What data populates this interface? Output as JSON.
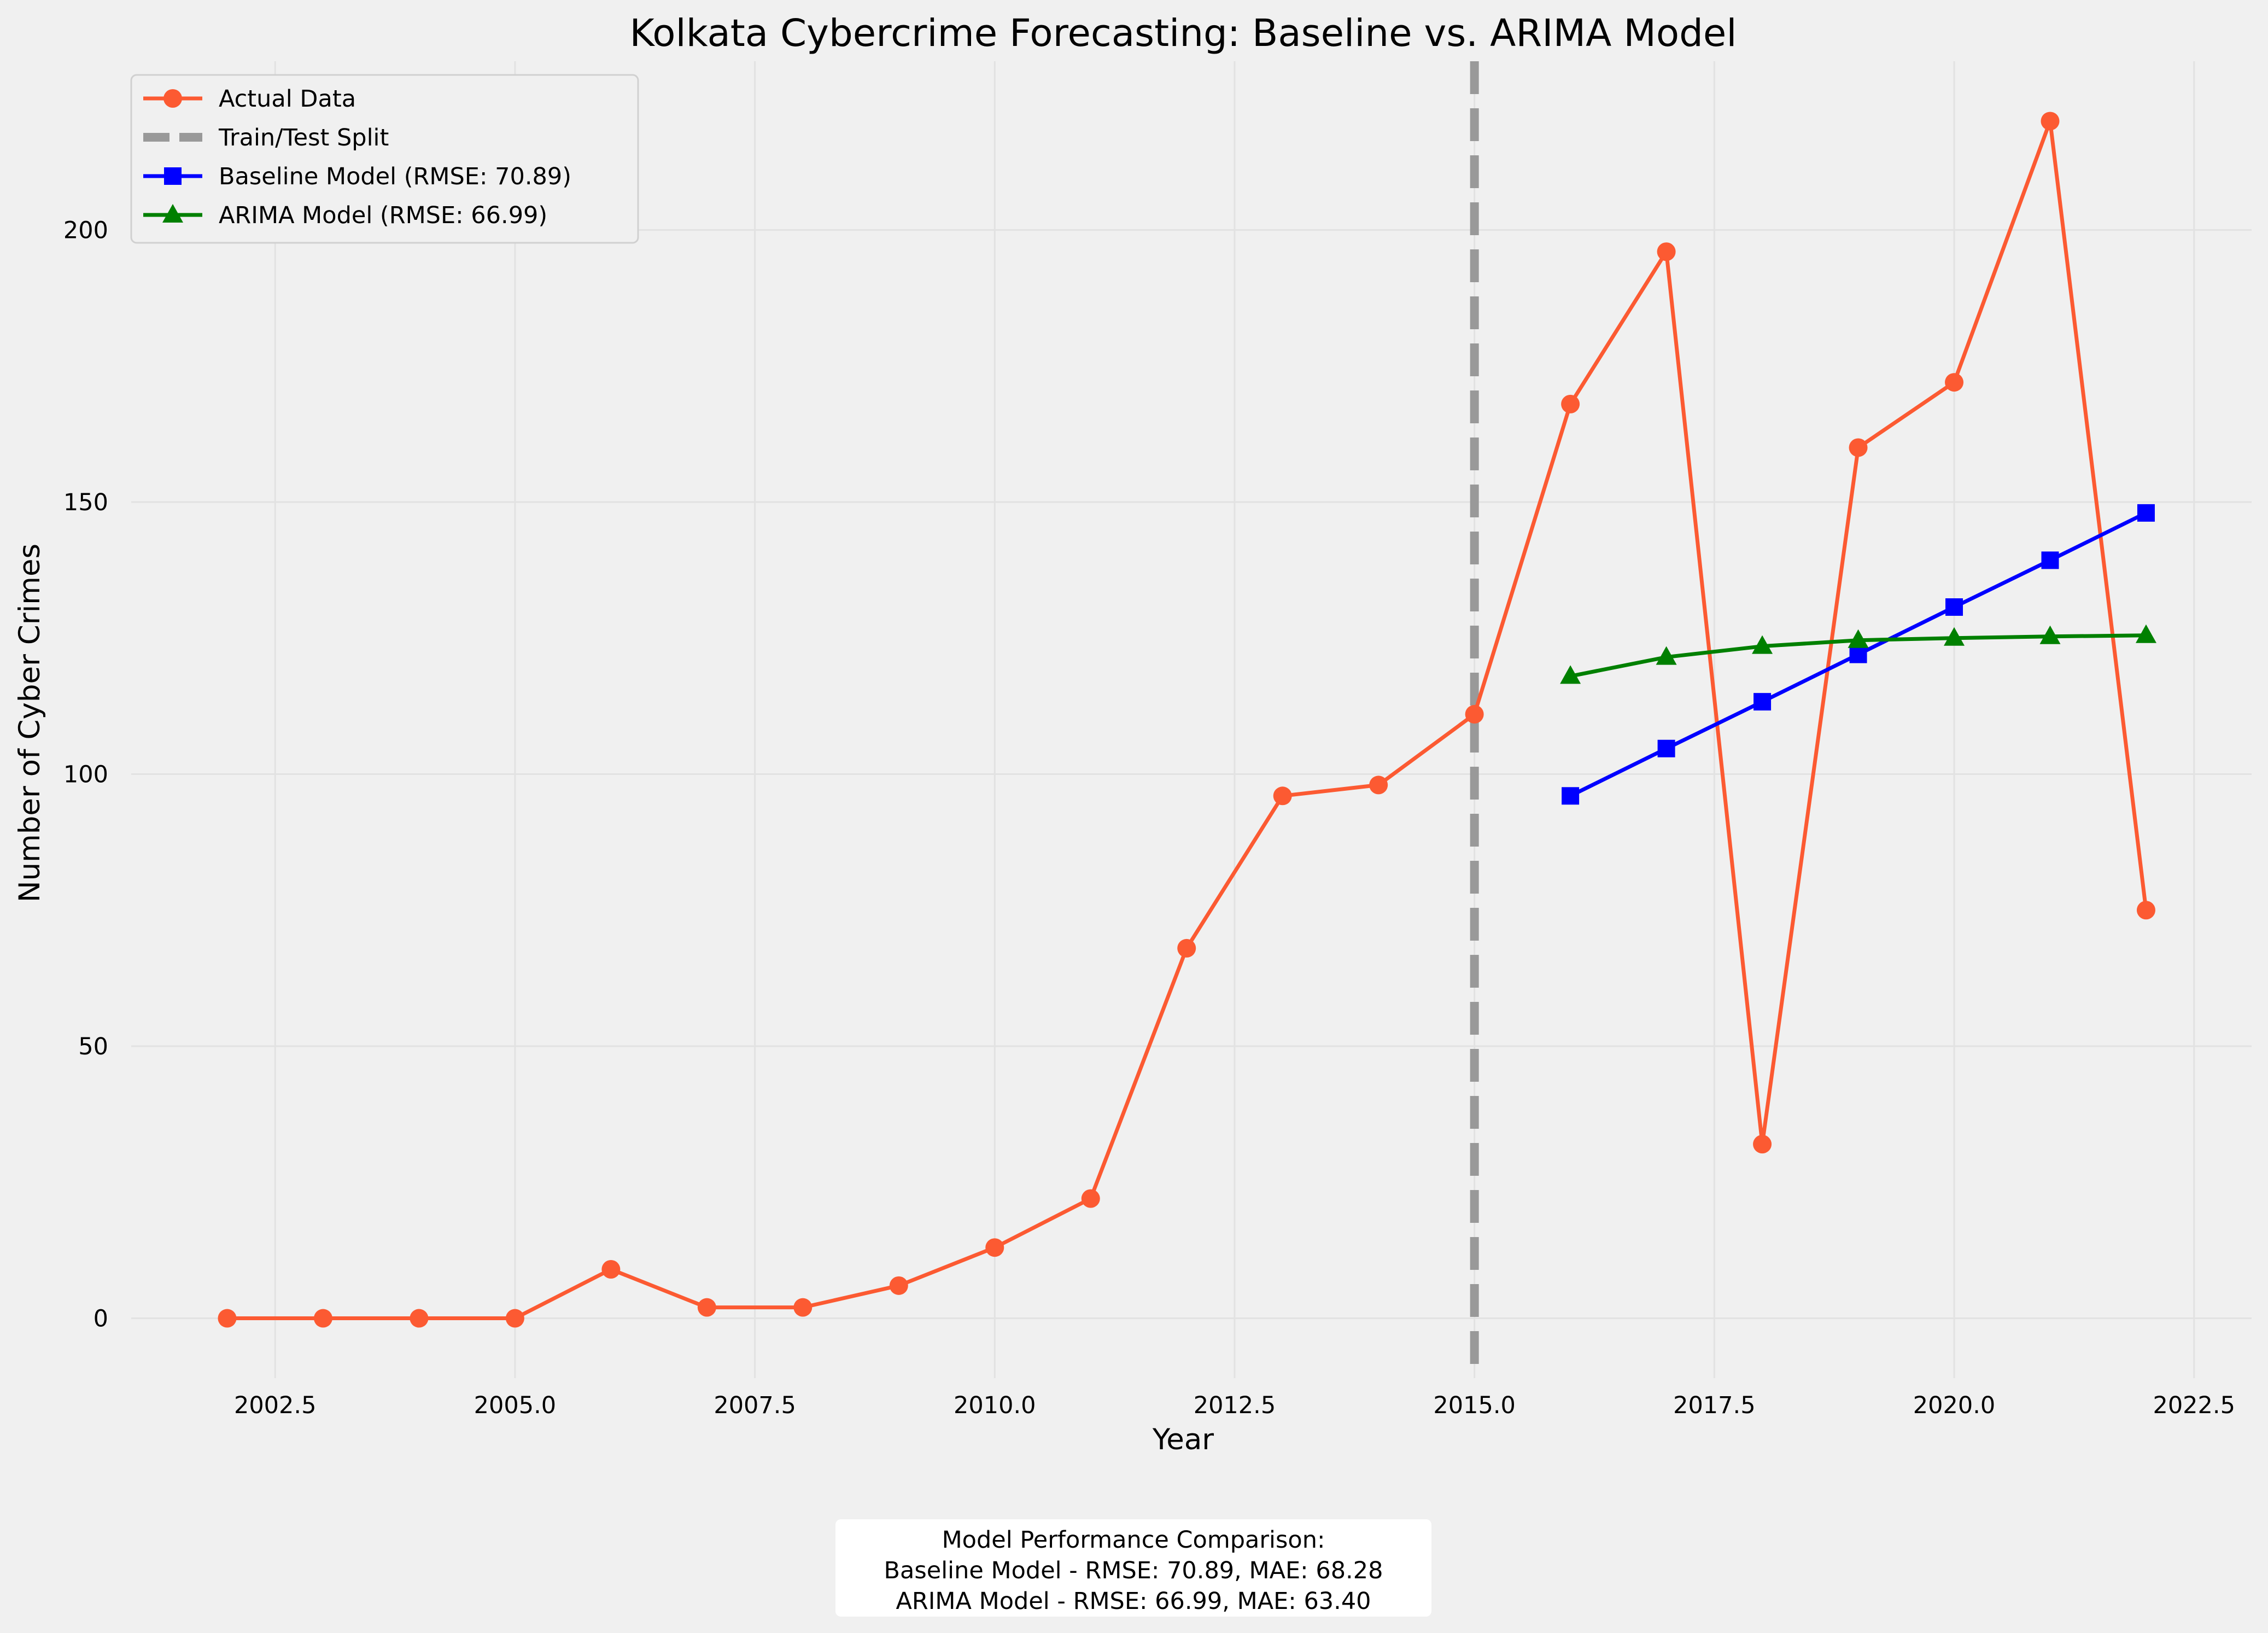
{
  "chart_data": {
    "type": "line",
    "title": "Kolkata Cybercrime Forecasting: Baseline vs. ARIMA Model",
    "xlabel": "Year",
    "ylabel": "Number of Cyber Crimes",
    "xlim": [
      2001.0,
      2023.1
    ],
    "ylim": [
      -11,
      231
    ],
    "xticks": [
      "2002.5",
      "2005.0",
      "2007.5",
      "2010.0",
      "2012.5",
      "2015.0",
      "2017.5",
      "2020.0",
      "2022.5"
    ],
    "yticks": [
      "0",
      "50",
      "100",
      "150",
      "200"
    ],
    "grid": true,
    "legend_position": "top-left",
    "split_line": {
      "label": "Train/Test Split",
      "x": 2015,
      "color": "#999999"
    },
    "series": [
      {
        "name": "Actual Data",
        "color": "#fc5a32",
        "marker": "circle",
        "x": [
          2002,
          2003,
          2004,
          2005,
          2006,
          2007,
          2008,
          2009,
          2010,
          2011,
          2012,
          2013,
          2014,
          2015,
          2016,
          2017,
          2018,
          2019,
          2020,
          2021,
          2022
        ],
        "values": [
          0,
          0,
          0,
          0,
          9,
          2,
          2,
          6,
          13,
          22,
          68,
          96,
          98,
          111,
          168,
          196,
          32,
          160,
          172,
          220,
          75
        ]
      },
      {
        "name": "Baseline Model (RMSE: 70.89)",
        "color": "#0000ff",
        "marker": "square",
        "x": [
          2016,
          2017,
          2018,
          2019,
          2020,
          2021,
          2022
        ],
        "values": [
          96,
          104.7,
          113.3,
          122,
          130.7,
          139.3,
          148
        ]
      },
      {
        "name": "ARIMA Model (RMSE: 66.99)",
        "color": "#008000",
        "marker": "triangle",
        "x": [
          2016,
          2017,
          2018,
          2019,
          2020,
          2021,
          2022
        ],
        "values": [
          118,
          121.5,
          123.5,
          124.6,
          125,
          125.3,
          125.5
        ]
      }
    ],
    "legend_order": [
      "Actual Data",
      "Train/Test Split",
      "Baseline Model (RMSE: 70.89)",
      "ARIMA Model (RMSE: 66.99)"
    ]
  },
  "summary": {
    "line1": "Model Performance Comparison:",
    "line2": "Baseline Model - RMSE: 70.89, MAE: 68.28",
    "line3": "ARIMA Model - RMSE: 66.99, MAE: 63.40"
  }
}
